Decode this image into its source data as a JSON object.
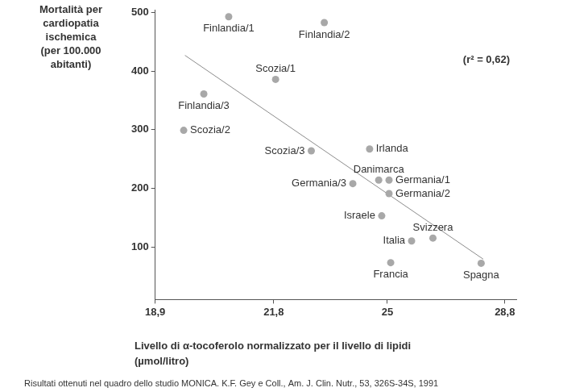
{
  "chart_data": {
    "type": "scatter",
    "y_label": [
      "Mortalità per",
      "cardiopatia",
      "ischemica",
      "(per 100.000",
      "abitanti)"
    ],
    "x_label": [
      "Livello di α-tocoferolo normalizzato per il livello di lipidi",
      "(µmol/litro)"
    ],
    "annotation": "(r² = 0,62)",
    "source": "Risultati ottenuti nel quadro dello studio MONICA. K.F. Gey e Coll., Am. J. Clin. Nutr., 53, 326S-34S, 1991",
    "point_labels": [
      "Finlandia/1",
      "Finlandia/2",
      "Scozia/1",
      "Finlandia/3",
      "Scozia/2",
      "Scozia/3",
      "Irlanda",
      "Danimarca",
      "Germania/1",
      "Germania/3",
      "Germania/2",
      "Israele",
      "Svizzera",
      "Italia",
      "Francia",
      "Spagna"
    ],
    "x": [
      20.65,
      23.17,
      21.85,
      20.04,
      19.56,
      22.81,
      24.47,
      24.74,
      25.05,
      23.98,
      25.05,
      24.83,
      26.41,
      25.74,
      25.1,
      27.99
    ],
    "values": [
      493,
      483,
      386,
      361,
      299,
      264,
      267,
      214,
      214,
      208,
      191,
      153,
      115,
      110,
      73,
      72
    ],
    "color": "#a8a8a8",
    "marker": "circle",
    "trend_line": {
      "x": [
        19.59,
        28.06
      ],
      "values": [
        427,
        79
      ],
      "color": "#8c8c8c",
      "line_style": "solid"
    },
    "log": "x",
    "xlim": [
      18.9,
      29.2
    ],
    "xticks": [
      {
        "value": 18.9,
        "label": "18,9"
      },
      {
        "value": 21.8,
        "label": "21,8"
      },
      25,
      {
        "value": 28.8,
        "label": "28,8"
      }
    ],
    "ylim": [
      10,
      505
    ],
    "yticks": [
      100,
      200,
      300,
      400,
      500
    ],
    "grid": false
  }
}
